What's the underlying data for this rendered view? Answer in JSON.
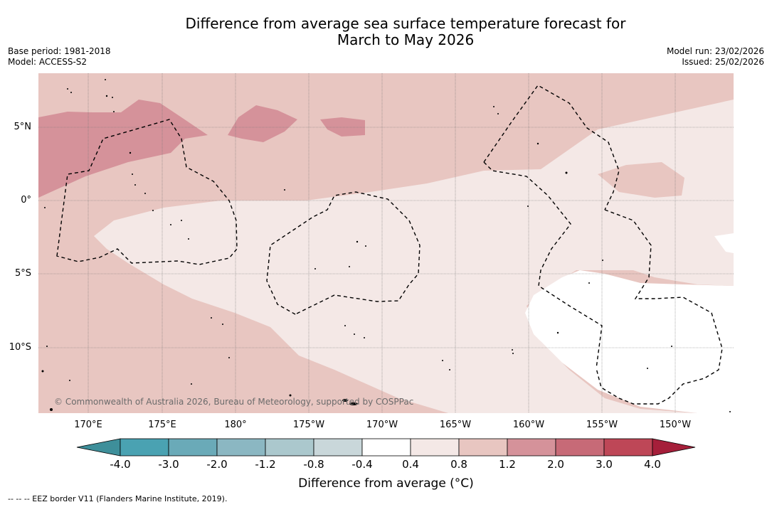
{
  "header": {
    "title_line1": "Difference from average sea surface temperature forecast for",
    "title_line2": "March to May 2026",
    "base_period": "Base period: 1981-2018",
    "model": "Model: ACCESS-S2",
    "model_run": "Model run: 23/02/2026",
    "issued": "Issued: 25/02/2026"
  },
  "map": {
    "copyright": "© Commonwealth of Australia 2026, Bureau of Meteorology, supported by COSPPac",
    "longitude_labels": [
      "170°E",
      "175°E",
      "180°",
      "175°W",
      "170°W",
      "165°W",
      "160°W",
      "155°W",
      "150°W"
    ],
    "latitude_labels": [
      "5°N",
      "0°",
      "5°S",
      "10°S"
    ]
  },
  "colorbar": {
    "tick_labels": [
      "-4.0",
      "-3.0",
      "-2.0",
      "-1.2",
      "-0.8",
      "-0.4",
      "0.4",
      "0.8",
      "1.2",
      "2.0",
      "3.0",
      "4.0"
    ],
    "colors": [
      "#3e8f9a",
      "#4aa2b2",
      "#6aaab8",
      "#8bb7c2",
      "#abc8cd",
      "#c9d7da",
      "#ffffff",
      "#f4e8e6",
      "#e8c6c1",
      "#d5929a",
      "#c76a77",
      "#be4757",
      "#a51f3a"
    ],
    "title": "Difference from average (°C)"
  },
  "footnote": "--  --  -- EEZ border V11 (Flanders Marine Institute, 2019)."
}
